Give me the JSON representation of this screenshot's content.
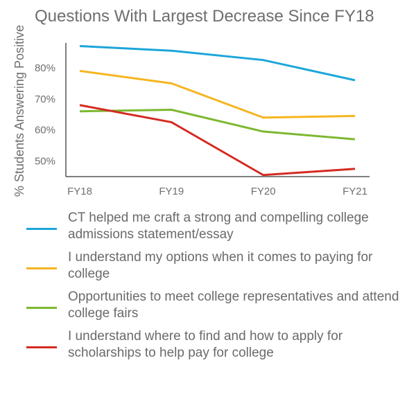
{
  "chart_data": {
    "type": "line",
    "title": "Questions With Largest Decrease Since FY18",
    "ylabel": "% Students Answering Positive",
    "xlabel": "",
    "categories": [
      "FY18",
      "FY19",
      "FY20",
      "FY21"
    ],
    "ylim": [
      45,
      88
    ],
    "yticks": [
      50,
      60,
      70,
      80
    ],
    "ytick_labels": [
      "50%",
      "60%",
      "70%",
      "80%"
    ],
    "grid": false,
    "legend_position": "bottom",
    "series": [
      {
        "name": "CT helped me craft a strong and compelling college admissions statement/essay",
        "color": "#1ba6d9",
        "values": [
          87,
          85.5,
          82.5,
          76
        ]
      },
      {
        "name": "I understand my options when it comes to paying for college",
        "color": "#f5b51f",
        "values": [
          79,
          75,
          64,
          64.5
        ]
      },
      {
        "name": "Opportunities to meet college representatives and attend college fairs",
        "color": "#7cb82f",
        "values": [
          66,
          66.5,
          59.5,
          57
        ]
      },
      {
        "name": "I understand where to find and how to apply for scholarships to help pay for college",
        "color": "#d42a20",
        "values": [
          68,
          62.5,
          45.5,
          47.5
        ]
      }
    ]
  }
}
